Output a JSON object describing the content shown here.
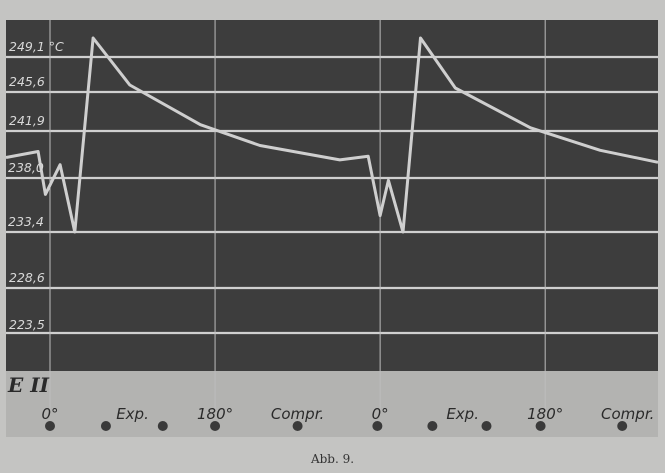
{
  "chart_data": {
    "type": "line",
    "title": "",
    "panel_label": "E II",
    "xlabel": "",
    "ylabel": "",
    "y_unit": "°C",
    "y_ticks": [
      "249,1 °C",
      "245,6",
      "241,9",
      "238,0",
      "233,4",
      "228,6",
      "223,5"
    ],
    "y_tick_values": [
      249.1,
      245.6,
      241.9,
      238.0,
      233.4,
      228.6,
      223.5
    ],
    "x_unit": "crank angle (°)",
    "x_markers": [
      {
        "label": "0°",
        "x": 0
      },
      {
        "label": "Exp.",
        "x": 90
      },
      {
        "label": "180°",
        "x": 180
      },
      {
        "label": "Compr.",
        "x": 270
      },
      {
        "label": "0°",
        "x": 360
      },
      {
        "label": "Exp.",
        "x": 450
      },
      {
        "label": "180°",
        "x": 540
      },
      {
        "label": "Compr.",
        "x": 630
      }
    ],
    "dot_angles": [
      0,
      61,
      123,
      180,
      270,
      357,
      417,
      476,
      535,
      624
    ],
    "grid": true,
    "series": [
      {
        "x": [
          -48,
          -13,
          -5,
          11,
          27,
          47,
          87,
          164,
          229,
          316,
          347,
          360,
          369,
          385,
          404,
          442,
          524,
          600,
          663
        ],
        "y": [
          239.7,
          240.2,
          236.6,
          239.1,
          233.4,
          251.0,
          246.3,
          242.5,
          240.7,
          239.5,
          239.8,
          234.8,
          237.8,
          233.4,
          251.0,
          246.0,
          242.2,
          240.3,
          239.3
        ]
      }
    ],
    "colors": {
      "background": "#3d3d3d",
      "grid": "#d0d0d0",
      "trace": "#cfcfcf",
      "strip": "#b3b3b1"
    }
  },
  "caption": "Abb. 9."
}
